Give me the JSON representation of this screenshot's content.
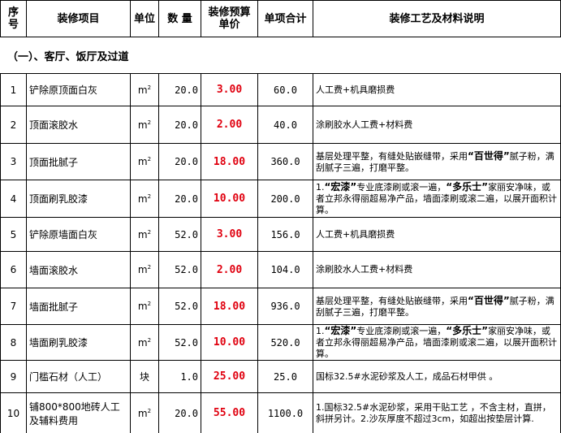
{
  "header": {
    "no": "序号",
    "item": "装修项目",
    "unit": "单位",
    "qty": "数 量",
    "price": "装修预算单价",
    "total": "单项合计",
    "desc": "装修工艺及材料说明"
  },
  "section": "（一）、客厅、饭厅及过道",
  "colors": {
    "price": "#e0000f"
  },
  "rows": [
    {
      "no": "1",
      "item": "铲除原顶面白灰",
      "unit": "m",
      "sup": "2",
      "qty": "20.0",
      "price": "3.00",
      "total": "60.0",
      "desc": [
        {
          "t": "人工费+机具磨损费"
        }
      ]
    },
    {
      "no": "2",
      "item": "顶面滚胶水",
      "unit": "m",
      "sup": "2",
      "qty": "20.0",
      "price": "2.00",
      "total": "40.0",
      "desc": [
        {
          "t": "涂刷胶水人工费+材料费"
        }
      ]
    },
    {
      "no": "3",
      "item": "顶面批腻子",
      "unit": "m",
      "sup": "2",
      "qty": "20.0",
      "price": "18.00",
      "total": "360.0",
      "desc": [
        {
          "t": "基层处理平整，有缝处贴嵌缝带，采用"
        },
        {
          "t": "“百世得”",
          "b": true
        },
        {
          "t": "腻子粉，满刮腻子三遍，打磨平整。"
        }
      ]
    },
    {
      "no": "4",
      "item": "顶面刷乳胶漆",
      "unit": "m",
      "sup": "2",
      "qty": "20.0",
      "price": "10.00",
      "total": "200.0",
      "desc": [
        {
          "t": "1."
        },
        {
          "t": "“宏漆”",
          "b": true
        },
        {
          "t": "专业底漆刷或滚一遍，"
        },
        {
          "t": "“多乐士”",
          "b": true
        },
        {
          "t": "家丽安净味，或者立邦永得丽超易净产品，墙面漆刷或滚二遍，以展开面积计算。"
        }
      ]
    },
    {
      "no": "5",
      "item": "铲除原墙面白灰",
      "unit": "m",
      "sup": "2",
      "qty": "52.0",
      "price": "3.00",
      "total": "156.0",
      "desc": [
        {
          "t": "人工费+机具磨损费"
        }
      ]
    },
    {
      "no": "6",
      "item": "墙面滚胶水",
      "unit": "m",
      "sup": "2",
      "qty": "52.0",
      "price": "2.00",
      "total": "104.0",
      "desc": [
        {
          "t": "涂刷胶水人工费+材料费"
        }
      ]
    },
    {
      "no": "7",
      "item": "墙面批腻子",
      "unit": "m",
      "sup": "2",
      "qty": "52.0",
      "price": "18.00",
      "total": "936.0",
      "desc": [
        {
          "t": "基层处理平整，有缝处贴嵌缝带，采用"
        },
        {
          "t": "“百世得”",
          "b": true
        },
        {
          "t": "腻子粉，满刮腻子三遍，打磨平整。"
        }
      ]
    },
    {
      "no": "8",
      "item": "墙面刷乳胶漆",
      "unit": "m",
      "sup": "2",
      "qty": "52.0",
      "price": "10.00",
      "total": "520.0",
      "desc": [
        {
          "t": "1."
        },
        {
          "t": "“宏漆”",
          "b": true
        },
        {
          "t": "专业底漆刷或滚一遍，"
        },
        {
          "t": "“多乐士”",
          "b": true
        },
        {
          "t": "家丽安净味，或者立邦永得丽超易净产品，墙面漆刷或滚二遍，以展开面积计算。"
        }
      ]
    },
    {
      "no": "9",
      "item": "门槛石材（人工）",
      "unit": "块",
      "sup": "",
      "qty": "1.0",
      "price": "25.00",
      "total": "25.0",
      "desc": [
        {
          "t": "国标32.5#水泥砂浆及人工，成品石材甲供 。"
        }
      ]
    },
    {
      "no": "10",
      "item": "铺800*800地砖人工及辅料费用",
      "unit": "m",
      "sup": "2",
      "qty": "20.0",
      "price": "55.00",
      "total": "1100.0",
      "desc": [
        {
          "t": "1.国标32.5#水泥砂浆，采用干贴工艺 ，不含主材，直拼，斜拼另计。2.沙灰厚度不超过3cm，如超出按垫层计算."
        }
      ]
    }
  ]
}
